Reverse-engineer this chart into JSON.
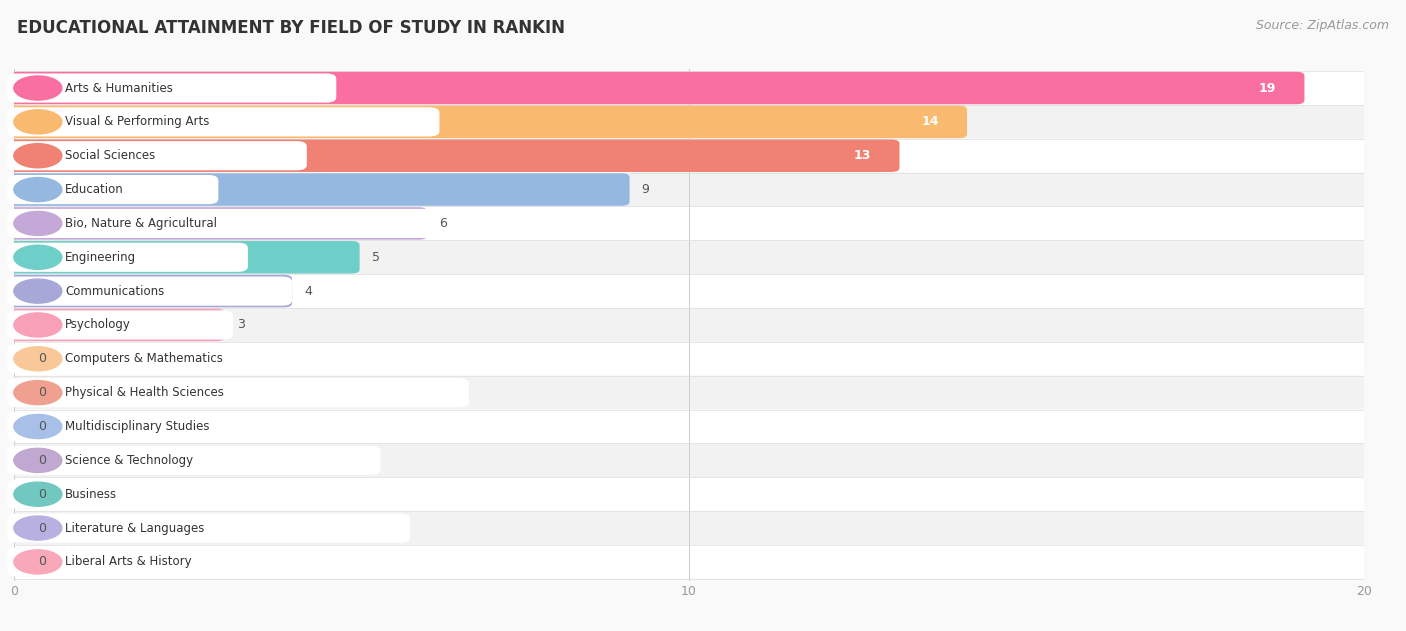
{
  "title": "EDUCATIONAL ATTAINMENT BY FIELD OF STUDY IN RANKIN",
  "source": "Source: ZipAtlas.com",
  "categories": [
    "Arts & Humanities",
    "Visual & Performing Arts",
    "Social Sciences",
    "Education",
    "Bio, Nature & Agricultural",
    "Engineering",
    "Communications",
    "Psychology",
    "Computers & Mathematics",
    "Physical & Health Sciences",
    "Multidisciplinary Studies",
    "Science & Technology",
    "Business",
    "Literature & Languages",
    "Liberal Arts & History"
  ],
  "values": [
    19,
    14,
    13,
    9,
    6,
    5,
    4,
    3,
    0,
    0,
    0,
    0,
    0,
    0,
    0
  ],
  "bar_colors": [
    "#F86FA0",
    "#F9B96E",
    "#EF8272",
    "#94B8E0",
    "#C4A8D8",
    "#6ECEC8",
    "#A8A8D8",
    "#F7A0B8",
    "#F9C898",
    "#F0A090",
    "#A8C0E8",
    "#C0A8D0",
    "#70C8C0",
    "#B8B0E0",
    "#F8A8B8"
  ],
  "xlim": [
    0,
    20
  ],
  "xticks": [
    0,
    10,
    20
  ],
  "row_colors": [
    "#ffffff",
    "#f2f2f2"
  ],
  "background_color": "#f9f9f9",
  "title_fontsize": 12,
  "source_fontsize": 9,
  "value_fontsize": 9,
  "label_fontsize": 9
}
